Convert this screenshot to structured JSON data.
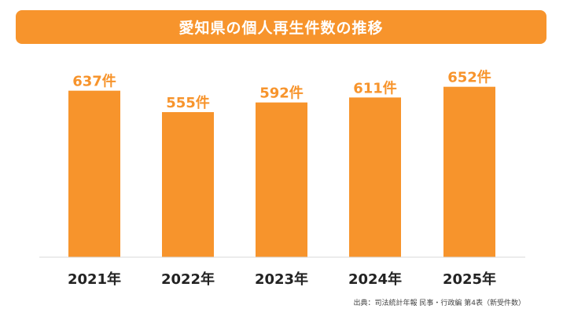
{
  "header": {
    "title": "愛知県の個人再生件数の推移"
  },
  "chart_data": {
    "type": "bar",
    "title": "愛知県の個人再生件数の推移",
    "categories": [
      "2021年",
      "2022年",
      "2023年",
      "2024年",
      "2025年"
    ],
    "values": [
      637,
      555,
      592,
      611,
      652
    ],
    "value_labels": [
      "637件",
      "555件",
      "592件",
      "611件",
      "652件"
    ],
    "ylim": [
      0,
      660
    ],
    "xlabel": "",
    "ylabel": "",
    "grid": false,
    "legend": "none"
  },
  "colors": {
    "bar": "#f7942c",
    "title_bg": "#f7942c",
    "axis": "#d9d9d9",
    "label": "#f7942c",
    "category": "#222222"
  },
  "footer": {
    "source": "出典：司法統計年報 民事・行政編 第4表（新受件数）"
  }
}
